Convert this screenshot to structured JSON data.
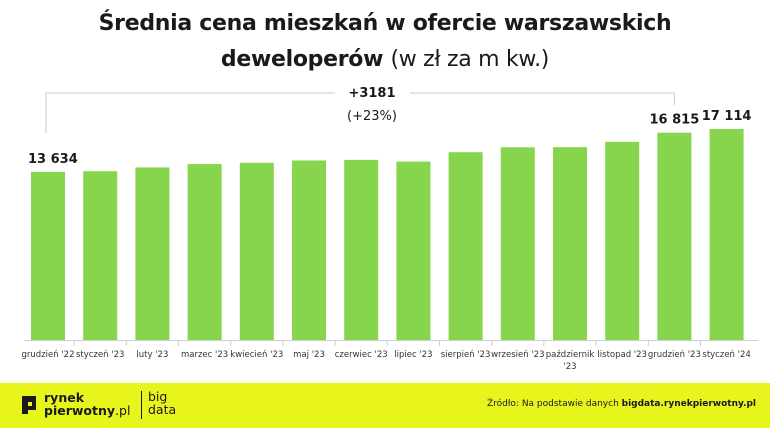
{
  "header": {
    "title_bold": "Średnia cena mieszkań w ofercie warszawskich deweloperów",
    "title_rest": "(w zł za m kw.)"
  },
  "chart_data": {
    "type": "bar",
    "title": "Średnia cena mieszkań w ofercie warszawskich deweloperów (w zł za m kw.)",
    "categories": [
      "grudzień '22",
      "styczeń '23",
      "luty '23",
      "marzec '23",
      "kwiecień '23",
      "maj '23",
      "czerwiec '23",
      "lipiec '23",
      "sierpień '23",
      "wrzesień '23",
      "październik '23",
      "listopad '23",
      "grudzień '23",
      "styczeń '24"
    ],
    "tick_labels": [
      [
        "grudzień '22"
      ],
      [
        "styczeń '23"
      ],
      [
        "luty '23"
      ],
      [
        "marzec '23"
      ],
      [
        "kwiecień '23"
      ],
      [
        "maj '23"
      ],
      [
        "czerwiec '23"
      ],
      [
        "lipiec '23"
      ],
      [
        "sierpień '23"
      ],
      [
        "wrzesień '23"
      ],
      [
        "październik",
        "'23"
      ],
      [
        "listopad '23"
      ],
      [
        "grudzień '23"
      ],
      [
        "styczeń '24"
      ]
    ],
    "values": [
      13634,
      13690,
      14000,
      14270,
      14370,
      14560,
      14610,
      14470,
      15230,
      15630,
      15640,
      16070,
      16815,
      17114
    ],
    "data_labels": {
      "0": "13 634",
      "12": "16 815",
      "13": "17 114"
    },
    "ylim": [
      0,
      17114
    ],
    "color": "#86d54c",
    "annotation": {
      "line1": "+3181",
      "line2": "(+23%)",
      "from_index": 0,
      "to_index": 12
    }
  },
  "footer": {
    "logo_line1": "rynek",
    "logo_line2_bold": "pierwotny",
    "logo_line2_rest": ".pl",
    "big_line1": "big",
    "big_line2": "data",
    "source_prefix": "Źródło: Na podstawie danych ",
    "source_link": "bigdata.rynekpierwotny.pl"
  }
}
